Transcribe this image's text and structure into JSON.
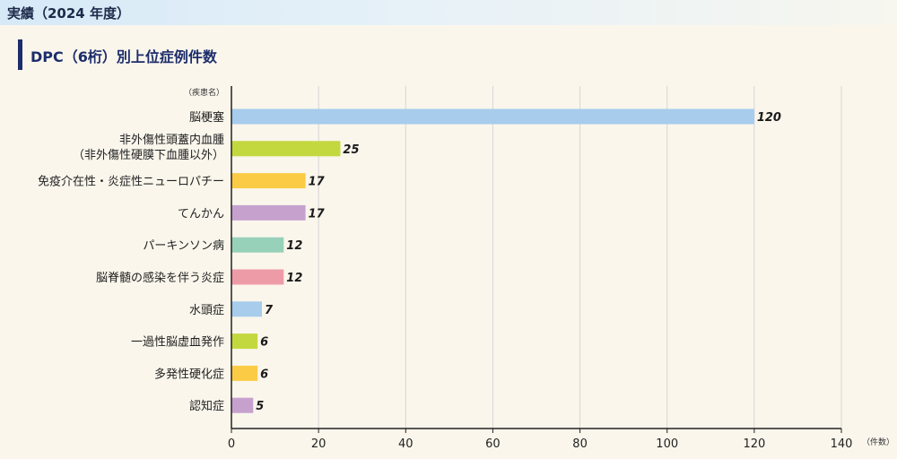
{
  "header": {
    "title": "実績（2024 年度）"
  },
  "section": {
    "title": "DPC（6桁）別上位症例件数"
  },
  "colors": {
    "blue": "#a7ccec",
    "green": "#c3d83f",
    "yellow": "#fbcb45",
    "purple": "#c6a1ce",
    "teal": "#98d1b9",
    "pink": "#ee9ba8",
    "axis": "#222222",
    "grid": "#d5d5d5"
  },
  "chart_data": {
    "type": "bar",
    "orientation": "horizontal",
    "ylabel": "（疾患名）",
    "xlabel": "（件数）",
    "xlim": [
      0,
      140
    ],
    "xticks": [
      0,
      20,
      40,
      60,
      80,
      100,
      120,
      140
    ],
    "grid": true,
    "categories": [
      [
        "脳梗塞"
      ],
      [
        "非外傷性頭蓋内血腫",
        "（非外傷性硬膜下血腫以外）"
      ],
      [
        "免疫介在性・炎症性ニューロパチー"
      ],
      [
        "てんかん"
      ],
      [
        "パーキンソン病"
      ],
      [
        "脳脊髄の感染を伴う炎症"
      ],
      [
        "水頭症"
      ],
      [
        "一過性脳虚血発作"
      ],
      [
        "多発性硬化症"
      ],
      [
        "認知症"
      ]
    ],
    "values": [
      120,
      25,
      17,
      17,
      12,
      12,
      7,
      6,
      6,
      5
    ],
    "bar_colors": [
      "#a7ccec",
      "#c3d83f",
      "#fbcb45",
      "#c6a1ce",
      "#98d1b9",
      "#ee9ba8",
      "#a7ccec",
      "#c3d83f",
      "#fbcb45",
      "#c6a1ce"
    ]
  }
}
